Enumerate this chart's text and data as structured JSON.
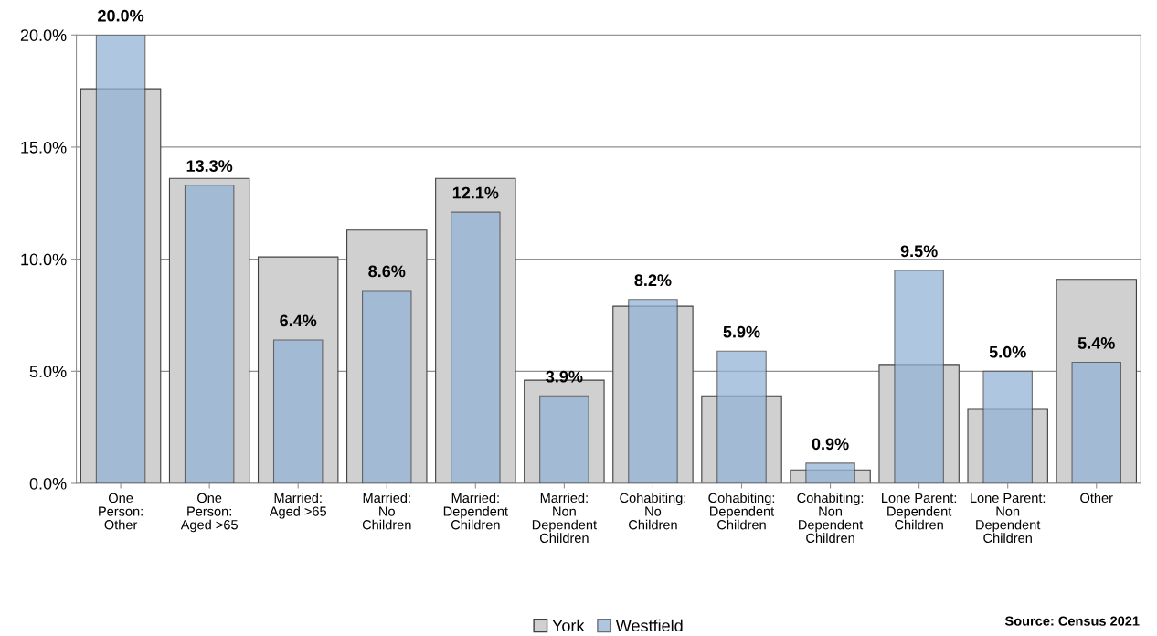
{
  "chart_data": {
    "type": "bar",
    "categories": [
      "One\nPerson:\nOther",
      "One\nPerson:\nAged >65",
      "Married:\nAged >65",
      "Married:\nNo\nChildren",
      "Married:\nDependent\nChildren",
      "Married:\nNon\nDependent\nChildren",
      "Cohabiting:\nNo\nChildren",
      "Cohabiting:\nDependent\nChildren",
      "Cohabiting:\nNon\nDependent\nChildren",
      "Lone Parent:\nDependent\nChildren",
      "Lone Parent:\nNon\nDependent\nChildren",
      "Other"
    ],
    "series": [
      {
        "name": "York",
        "color": "#d0d0d0",
        "values": [
          17.6,
          13.6,
          10.1,
          11.3,
          13.6,
          4.6,
          7.9,
          3.9,
          0.6,
          5.3,
          3.3,
          9.1
        ]
      },
      {
        "name": "Westfield",
        "color": "#95b3d7",
        "values": [
          20.0,
          13.3,
          6.4,
          8.6,
          12.1,
          3.9,
          8.2,
          5.9,
          0.9,
          9.5,
          5.0,
          5.4
        ],
        "value_labels": [
          "20.0%",
          "13.3%",
          "6.4%",
          "8.6%",
          "12.1%",
          "3.9%",
          "8.2%",
          "5.9%",
          "0.9%",
          "9.5%",
          "5.0%",
          "5.4%"
        ]
      }
    ],
    "ylim": [
      0,
      20
    ],
    "yticks": [
      {
        "value": 0,
        "label": "0.0%"
      },
      {
        "value": 5,
        "label": "5.0%"
      },
      {
        "value": 10,
        "label": "10.0%"
      },
      {
        "value": 15,
        "label": "15.0%"
      },
      {
        "value": 20,
        "label": "20.0%"
      }
    ],
    "grid": "y",
    "legend": "bottom",
    "annotations": [
      "Source: Census 2021"
    ]
  }
}
